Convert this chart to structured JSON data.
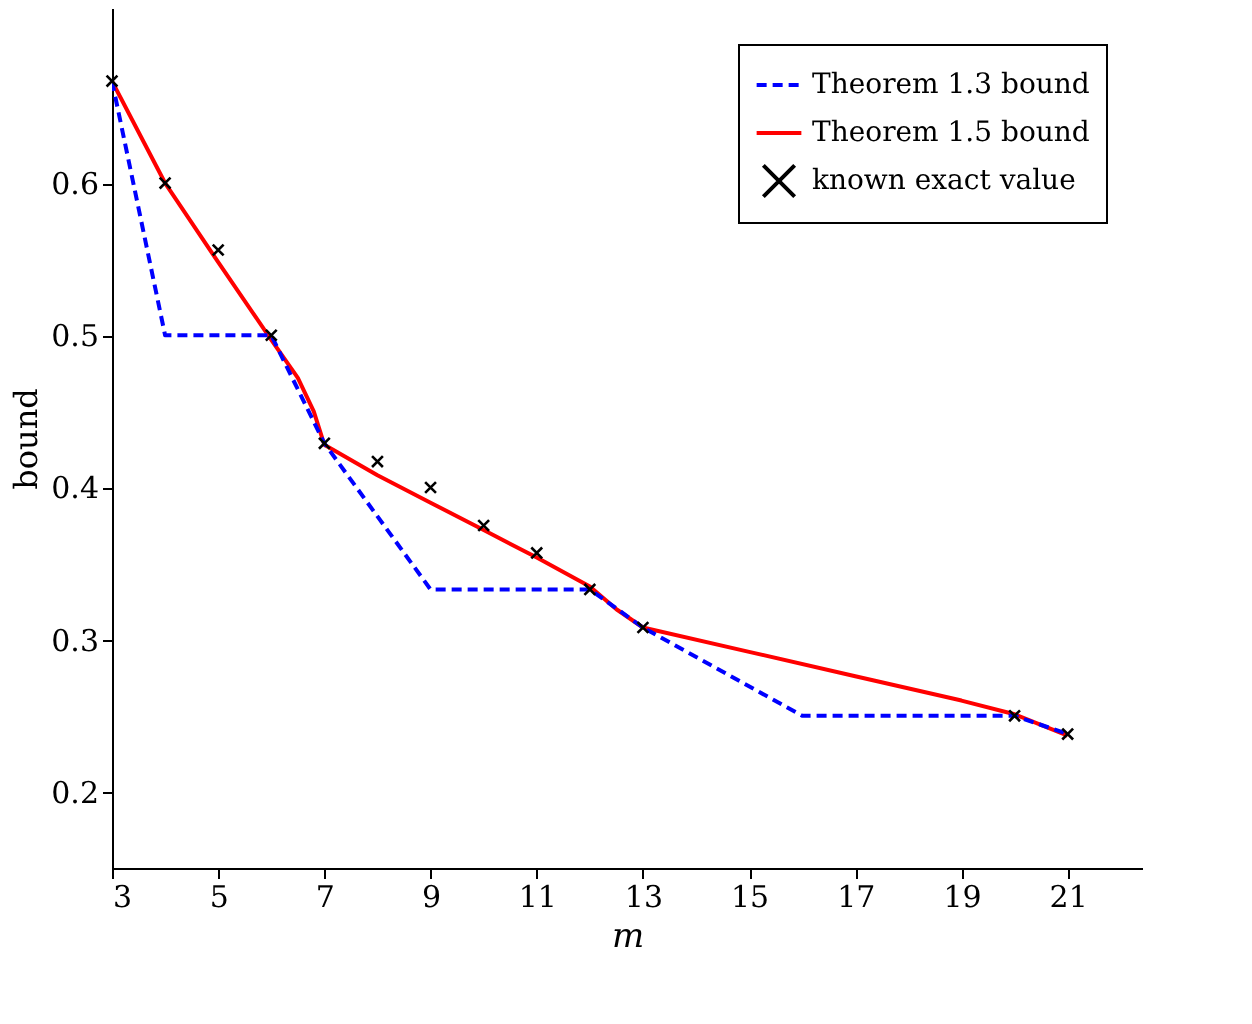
{
  "chart_data": {
    "type": "line",
    "xlabel": "m",
    "ylabel": "bound",
    "xlim": [
      3,
      22.4
    ],
    "ylim": [
      0.15,
      0.715
    ],
    "xticks": [
      3,
      5,
      7,
      9,
      11,
      13,
      15,
      17,
      19,
      21
    ],
    "yticks": [
      0.2,
      0.3,
      0.4,
      0.5,
      0.6
    ],
    "grid": false,
    "legend": "top right",
    "series": [
      {
        "name": "Theorem 1.3 bound",
        "color": "#0000ff",
        "line_style": "dashed",
        "marker": "none",
        "x": [
          3,
          4,
          6,
          7,
          9,
          12,
          13,
          16,
          20,
          21
        ],
        "values": [
          0.667,
          0.5,
          0.5,
          0.429,
          0.333,
          0.333,
          0.308,
          0.25,
          0.25,
          0.238
        ]
      },
      {
        "name": "Theorem 1.5 bound",
        "color": "#ff0000",
        "line_style": "solid",
        "marker": "none",
        "x": [
          3,
          4,
          5,
          6,
          6.5,
          6.8,
          7,
          8,
          9,
          10,
          11,
          12,
          12.5,
          13,
          15,
          17,
          19,
          20,
          21
        ],
        "values": [
          0.667,
          0.6,
          0.548,
          0.497,
          0.472,
          0.45,
          0.428,
          0.408,
          0.39,
          0.372,
          0.354,
          0.335,
          0.32,
          0.308,
          0.292,
          0.276,
          0.26,
          0.251,
          0.237
        ]
      },
      {
        "name": "known exact value",
        "type": "scatter",
        "color": "#000000",
        "marker": "cross",
        "x": [
          3,
          4,
          5,
          6,
          7,
          8,
          9,
          10,
          11,
          12,
          13,
          20,
          21
        ],
        "values": [
          0.667,
          0.6,
          0.556,
          0.5,
          0.429,
          0.417,
          0.4,
          0.375,
          0.357,
          0.333,
          0.308,
          0.25,
          0.238
        ]
      }
    ]
  }
}
